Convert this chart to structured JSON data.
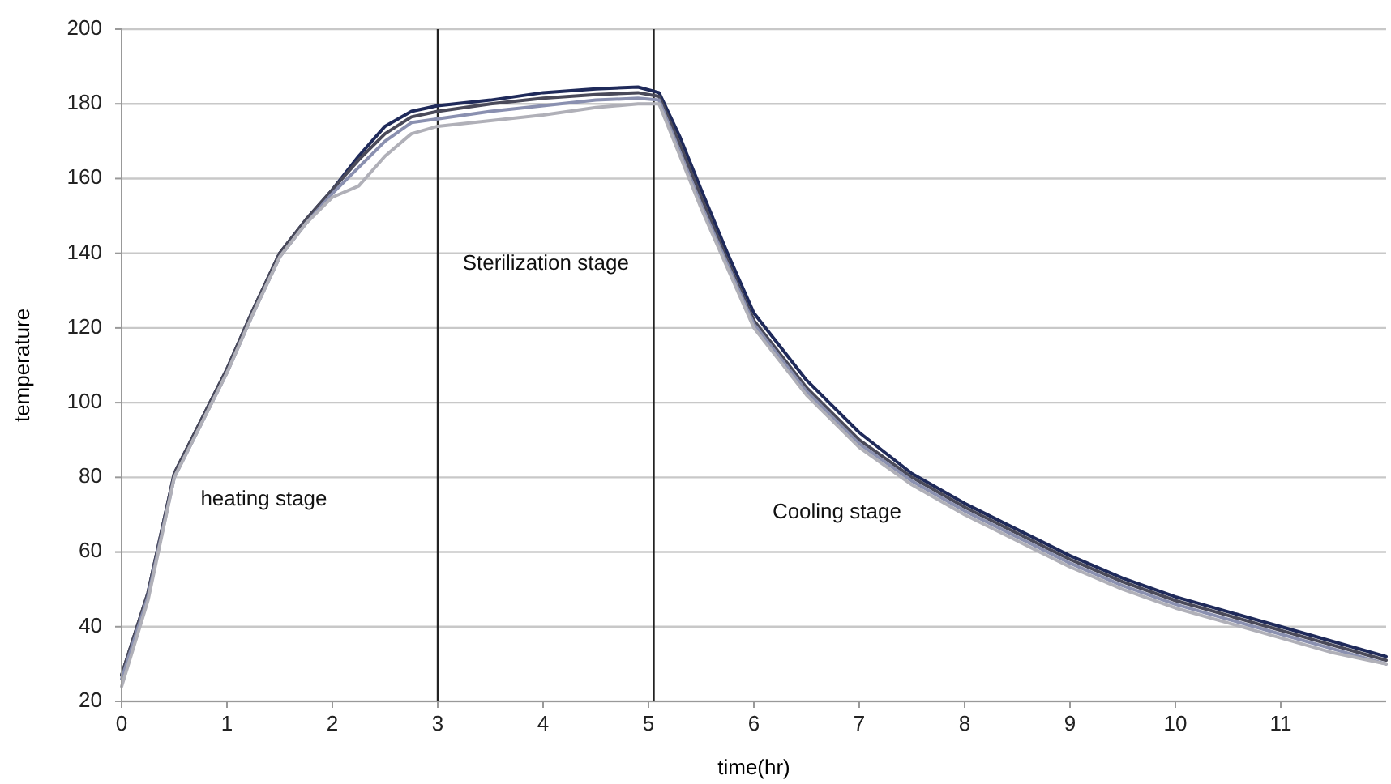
{
  "chart_data": {
    "type": "line",
    "xlabel": "time(hr)",
    "ylabel": "temperature",
    "x": [
      0,
      0.25,
      0.5,
      0.75,
      1,
      1.25,
      1.5,
      1.75,
      2,
      2.25,
      2.5,
      2.75,
      3,
      3.5,
      4,
      4.5,
      4.9,
      5.1,
      5.3,
      5.5,
      5.75,
      6,
      6.5,
      7,
      7.5,
      8,
      8.5,
      9,
      9.5,
      10,
      10.5,
      11,
      11.5,
      12
    ],
    "series": [
      {
        "color": "#1f2a5a",
        "values": [
          27,
          49,
          81,
          95,
          109,
          125,
          140,
          149,
          157,
          166,
          174,
          178,
          179.5,
          181,
          183,
          184,
          184.5,
          183,
          171,
          157,
          140,
          124,
          106,
          92,
          81,
          73,
          66,
          59,
          53,
          48,
          44,
          40,
          36,
          32
        ]
      },
      {
        "color": "#4a4a5a",
        "values": [
          27,
          49,
          81,
          95,
          109,
          125,
          140,
          149,
          157,
          165,
          172,
          176.5,
          178,
          180,
          181.5,
          182.5,
          183,
          182,
          169,
          155,
          138,
          122,
          104,
          90,
          80,
          72,
          65,
          58,
          52,
          47,
          43,
          39,
          35,
          31
        ]
      },
      {
        "color": "#8a90b0",
        "values": [
          26,
          48,
          80,
          94,
          108,
          124,
          139,
          148,
          156,
          163,
          170,
          175,
          176,
          178,
          179.5,
          181,
          181.5,
          181,
          167,
          153,
          137,
          121,
          103,
          89,
          79,
          71,
          64,
          57,
          51,
          46,
          42,
          38,
          34,
          30
        ]
      },
      {
        "color": "#b0b0b8",
        "values": [
          24,
          47,
          80,
          94,
          108,
          124,
          139,
          148,
          155,
          158,
          166,
          172,
          174,
          175.5,
          177,
          179,
          180,
          180,
          166,
          152,
          136,
          120,
          102,
          88,
          78,
          70,
          63,
          56,
          50,
          45,
          41,
          37,
          33,
          30
        ]
      }
    ],
    "xlim": [
      0,
      12
    ],
    "xticks": [
      0,
      1,
      2,
      3,
      4,
      5,
      6,
      7,
      8,
      9,
      10,
      11
    ],
    "ylim": [
      20,
      200
    ],
    "yticks": [
      20,
      40,
      60,
      80,
      100,
      120,
      140,
      160,
      180,
      200
    ],
    "grid": "y",
    "marker": "none",
    "line_style": "solid",
    "ref_lines": [
      {
        "axis": "x",
        "value": 3,
        "color": "#222222"
      },
      {
        "axis": "x",
        "value": 5.05,
        "color": "#222222"
      }
    ],
    "annotations": [
      "heating stage",
      "Sterilization stage",
      "Cooling stage"
    ]
  }
}
